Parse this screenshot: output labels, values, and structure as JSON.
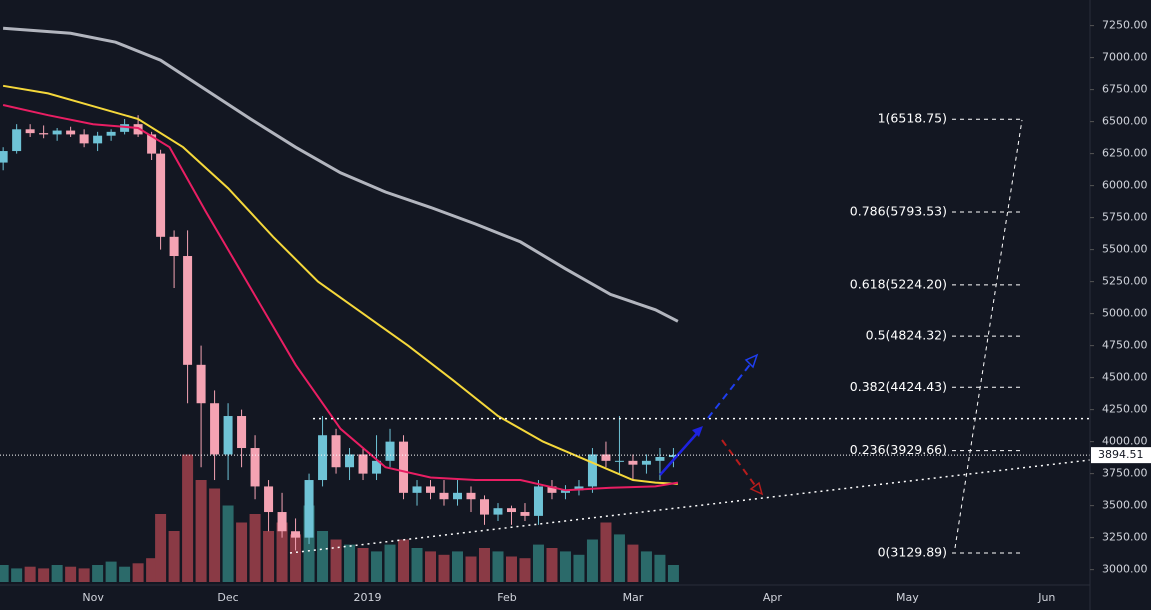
{
  "chart_data": {
    "type": "candlestick",
    "grid": true,
    "xlim": [
      -20.7,
      221.6
    ],
    "xticks": [
      {
        "value": 0,
        "label": "Nov"
      },
      {
        "value": 30,
        "label": "Dec"
      },
      {
        "value": 61,
        "label": "2019"
      },
      {
        "value": 92,
        "label": "Feb"
      },
      {
        "value": 120,
        "label": "Mar"
      },
      {
        "value": 151,
        "label": "Apr"
      },
      {
        "value": 181,
        "label": "May"
      },
      {
        "value": 212,
        "label": "Jun"
      }
    ],
    "ylim": [
      2880,
      7450
    ],
    "yticks": [
      {
        "value": 3000,
        "label": "3000.00"
      },
      {
        "value": 3250,
        "label": "3250.00"
      },
      {
        "value": 3500,
        "label": "3500.00"
      },
      {
        "value": 3750,
        "label": "3750.00"
      },
      {
        "value": 4000,
        "label": "4000.00"
      },
      {
        "value": 4250,
        "label": "4250.00"
      },
      {
        "value": 4500,
        "label": "4500.00"
      },
      {
        "value": 4750,
        "label": "4750.00"
      },
      {
        "value": 5000,
        "label": "5000.00"
      },
      {
        "value": 5250,
        "label": "5250.00"
      },
      {
        "value": 5500,
        "label": "5500.00"
      },
      {
        "value": 5750,
        "label": "5750.00"
      },
      {
        "value": 6000,
        "label": "6000.00"
      },
      {
        "value": 6250,
        "label": "6250.00"
      },
      {
        "value": 6500,
        "label": "6500.00"
      },
      {
        "value": 6750,
        "label": "6750.00"
      },
      {
        "value": 7000,
        "label": "7000.00"
      },
      {
        "value": 7250,
        "label": "7250.00"
      }
    ],
    "up_color": "#6fc3d6",
    "down_color": "#f4a3b3",
    "volume_up_color": "#2b6a6a",
    "volume_down_color": "#8a3a45",
    "candles": {
      "x": [
        -20,
        -17,
        -14,
        -11,
        -8,
        -5,
        -2,
        1,
        4,
        7,
        10,
        13,
        15,
        18,
        21,
        24,
        27,
        30,
        33,
        36,
        39,
        42,
        45,
        48,
        51,
        54,
        57,
        60,
        63,
        66,
        69,
        72,
        75,
        78,
        81,
        84,
        87,
        90,
        93,
        96,
        99,
        102,
        105,
        108,
        111,
        114,
        117,
        120,
        123,
        126,
        129
      ],
      "open": [
        6180,
        6270,
        6440,
        6410,
        6400,
        6430,
        6400,
        6330,
        6390,
        6420,
        6480,
        6400,
        6250,
        5600,
        5450,
        4600,
        4300,
        3900,
        4200,
        3950,
        3650,
        3450,
        3300,
        3250,
        3700,
        4050,
        3800,
        3900,
        3750,
        3850,
        4000,
        3600,
        3650,
        3600,
        3550,
        3600,
        3550,
        3430,
        3480,
        3450,
        3420,
        3650,
        3600,
        3620,
        3650,
        3900,
        3850,
        3850,
        3820,
        3850,
        3880
      ],
      "high": [
        6300,
        6480,
        6480,
        6470,
        6450,
        6460,
        6440,
        6420,
        6440,
        6520,
        6550,
        6420,
        6280,
        5650,
        5650,
        4750,
        4400,
        4300,
        4250,
        4050,
        3700,
        3600,
        3400,
        3750,
        4200,
        4100,
        3950,
        3950,
        4050,
        4100,
        4050,
        3700,
        3700,
        3700,
        3700,
        3650,
        3580,
        3520,
        3500,
        3520,
        3700,
        3700,
        3660,
        3700,
        3950,
        4000,
        4200,
        3900,
        3900,
        3950,
        3950
      ],
      "low": [
        6120,
        6250,
        6380,
        6370,
        6350,
        6380,
        6300,
        6270,
        6350,
        6400,
        6380,
        6200,
        5500,
        5200,
        4300,
        3800,
        3700,
        3700,
        3800,
        3550,
        3300,
        3250,
        3150,
        3200,
        3650,
        3750,
        3700,
        3700,
        3700,
        3800,
        3550,
        3500,
        3550,
        3500,
        3500,
        3450,
        3350,
        3380,
        3350,
        3380,
        3350,
        3550,
        3550,
        3580,
        3600,
        3800,
        3750,
        3700,
        3750,
        3700,
        3800
      ],
      "close": [
        6270,
        6440,
        6410,
        6400,
        6430,
        6400,
        6330,
        6390,
        6420,
        6480,
        6400,
        6250,
        5600,
        5450,
        4600,
        4300,
        3900,
        4200,
        3950,
        3650,
        3450,
        3300,
        3250,
        3700,
        4050,
        3800,
        3900,
        3750,
        3850,
        4000,
        3600,
        3650,
        3600,
        3550,
        3600,
        3550,
        3430,
        3480,
        3450,
        3420,
        3650,
        3600,
        3620,
        3650,
        3900,
        3850,
        3850,
        3820,
        3850,
        3880,
        3895
      ],
      "volume": [
        10,
        8,
        9,
        8,
        10,
        9,
        8,
        10,
        12,
        9,
        11,
        14,
        40,
        30,
        75,
        60,
        55,
        45,
        35,
        40,
        30,
        35,
        28,
        45,
        30,
        25,
        22,
        20,
        18,
        22,
        25,
        20,
        18,
        16,
        18,
        15,
        20,
        18,
        15,
        14,
        22,
        20,
        18,
        16,
        25,
        35,
        28,
        22,
        18,
        16,
        10
      ]
    },
    "moving_averages": [
      {
        "color": "#b2b5be",
        "x": [
          -20,
          -5,
          5,
          15,
          25,
          35,
          45,
          55,
          65,
          75,
          85,
          95,
          105,
          115,
          125,
          130
        ],
        "values": [
          7230,
          7190,
          7120,
          6980,
          6750,
          6520,
          6300,
          6100,
          5950,
          5830,
          5700,
          5560,
          5350,
          5150,
          5030,
          4940
        ]
      },
      {
        "color": "#f5d83b",
        "x": [
          -20,
          -10,
          0,
          10,
          20,
          30,
          40,
          50,
          60,
          70,
          80,
          90,
          100,
          110,
          120,
          125,
          130
        ],
        "values": [
          6780,
          6720,
          6620,
          6520,
          6300,
          5980,
          5600,
          5250,
          5000,
          4750,
          4480,
          4200,
          4000,
          3850,
          3700,
          3680,
          3670
        ]
      },
      {
        "color": "#e91e63",
        "x": [
          -20,
          -10,
          0,
          10,
          17,
          25,
          35,
          45,
          55,
          65,
          75,
          85,
          95,
          105,
          115,
          125,
          130
        ],
        "values": [
          6630,
          6550,
          6480,
          6450,
          6300,
          5800,
          5200,
          4600,
          4100,
          3800,
          3720,
          3700,
          3700,
          3620,
          3640,
          3650,
          3680
        ]
      }
    ],
    "fib_levels": [
      {
        "value": 6518.75,
        "label": "1(6518.75)"
      },
      {
        "value": 5793.53,
        "label": "0.786(5793.53)"
      },
      {
        "value": 5224.2,
        "label": "0.618(5224.20)"
      },
      {
        "value": 4824.32,
        "label": "0.5(4824.32)"
      },
      {
        "value": 4424.43,
        "label": "0.382(4424.43)"
      },
      {
        "value": 3929.66,
        "label": "0.236(3929.66)"
      },
      {
        "value": 3129.89,
        "label": "0(3129.89)"
      }
    ],
    "resistance": 4180,
    "last_price": 3894.51
  }
}
